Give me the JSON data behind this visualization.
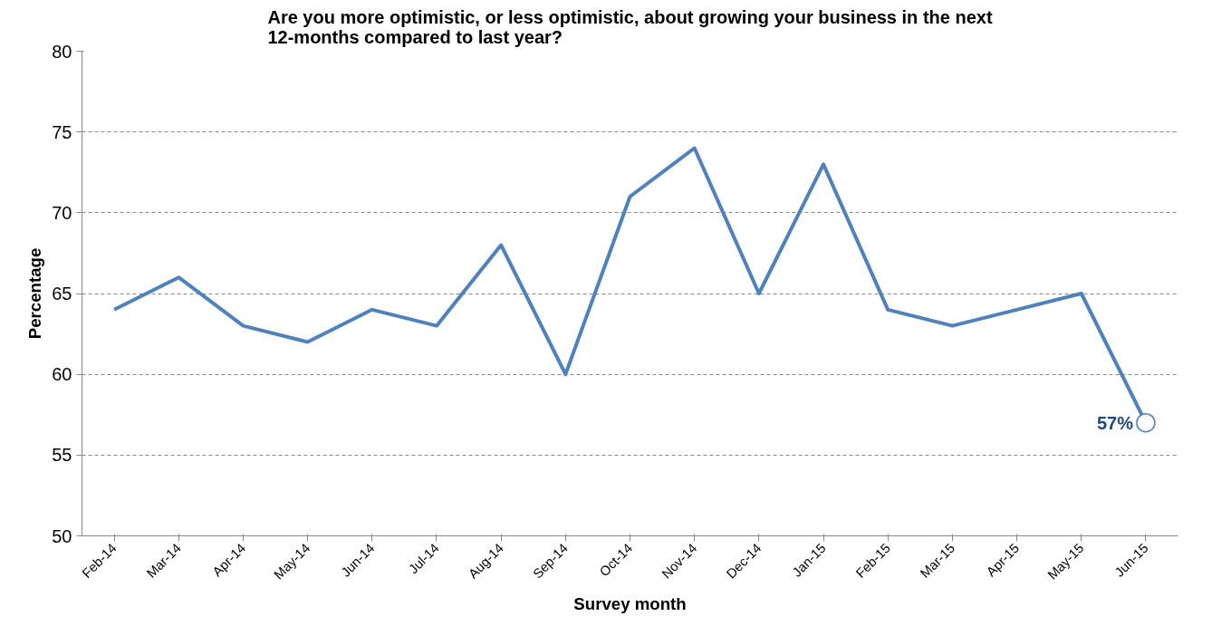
{
  "chart_data": {
    "type": "line",
    "title": "Are you more optimistic, or less optimistic, about growing your business in the next\n12-months compared to last year?",
    "xlabel": "Survey month",
    "ylabel": "Percentage",
    "categories": [
      "Feb-14",
      "Mar-14",
      "Apr-14",
      "May-14",
      "Jun-14",
      "Jul-14",
      "Aug-14",
      "Sep-14",
      "Oct-14",
      "Nov-14",
      "Dec-14",
      "Jan-15",
      "Feb-15",
      "Mar-15",
      "Apr-15",
      "May-15",
      "Jun-15"
    ],
    "series": [
      {
        "color": "#4f81bd",
        "values": [
          64,
          66,
          63,
          62,
          64,
          63,
          68,
          60,
          71,
          74,
          65,
          73,
          64,
          63,
          64,
          65,
          57
        ],
        "value_labels": [
          null,
          null,
          null,
          null,
          null,
          null,
          null,
          null,
          null,
          null,
          null,
          null,
          null,
          null,
          null,
          null,
          "57%"
        ]
      }
    ],
    "ylim": [
      50,
      80
    ],
    "yticks": [
      50,
      55,
      60,
      65,
      70,
      75,
      80
    ],
    "grid": "y"
  }
}
